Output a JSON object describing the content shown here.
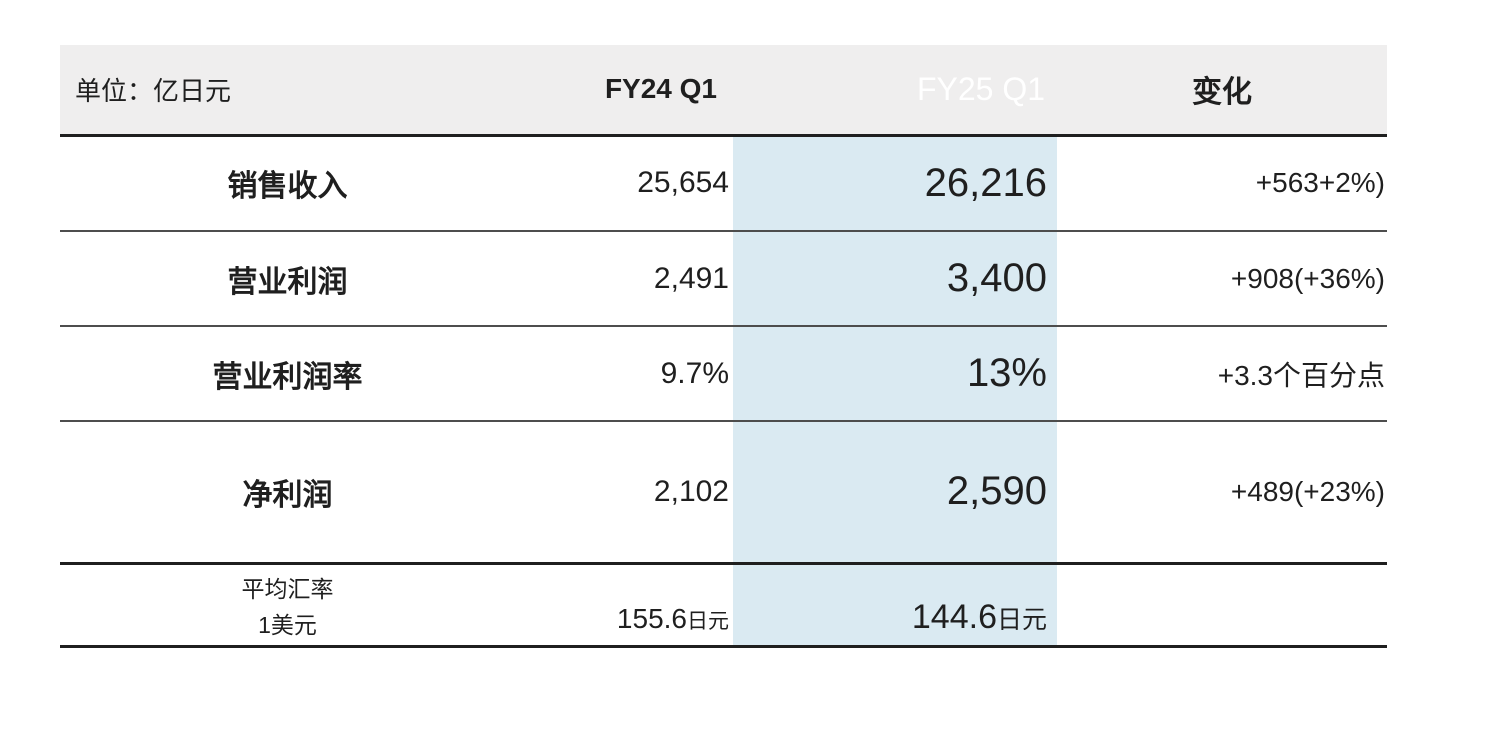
{
  "table": {
    "unit_label": "单位：亿日元",
    "columns": {
      "fy24": "FY24 Q1",
      "fy25": "FY25 Q1",
      "change": "变化"
    },
    "rows": [
      {
        "label": "销售收入",
        "fy24": "25,654",
        "fy25": "26,216",
        "change": "+563+2%)"
      },
      {
        "label": "营业利润",
        "fy24": "2,491",
        "fy25": "3,400",
        "change": "+908(+36%)"
      },
      {
        "label": "营业利润率",
        "fy24": "9.7%",
        "fy25": "13%",
        "change": "+3.3个百分点"
      },
      {
        "label": "净利润",
        "fy24": "2,102",
        "fy25": "2,590",
        "change": "+489(+23%)"
      }
    ],
    "footer": {
      "label_line1": "平均汇率",
      "label_line2": "1美元",
      "fy24_value": "155.6",
      "fy24_unit": "日元",
      "fy25_value": "144.6",
      "fy25_unit": "日元",
      "change": ""
    },
    "colors": {
      "header_bg": "#efeeee",
      "highlight_header_bg": "#2b4c7d",
      "highlight_column_bg": "#daeaf2",
      "line_dark": "#1f1f1f",
      "line_thin": "#4d4d4d",
      "text": "#1f1f1f",
      "highlight_header_text": "#ffffff"
    }
  }
}
